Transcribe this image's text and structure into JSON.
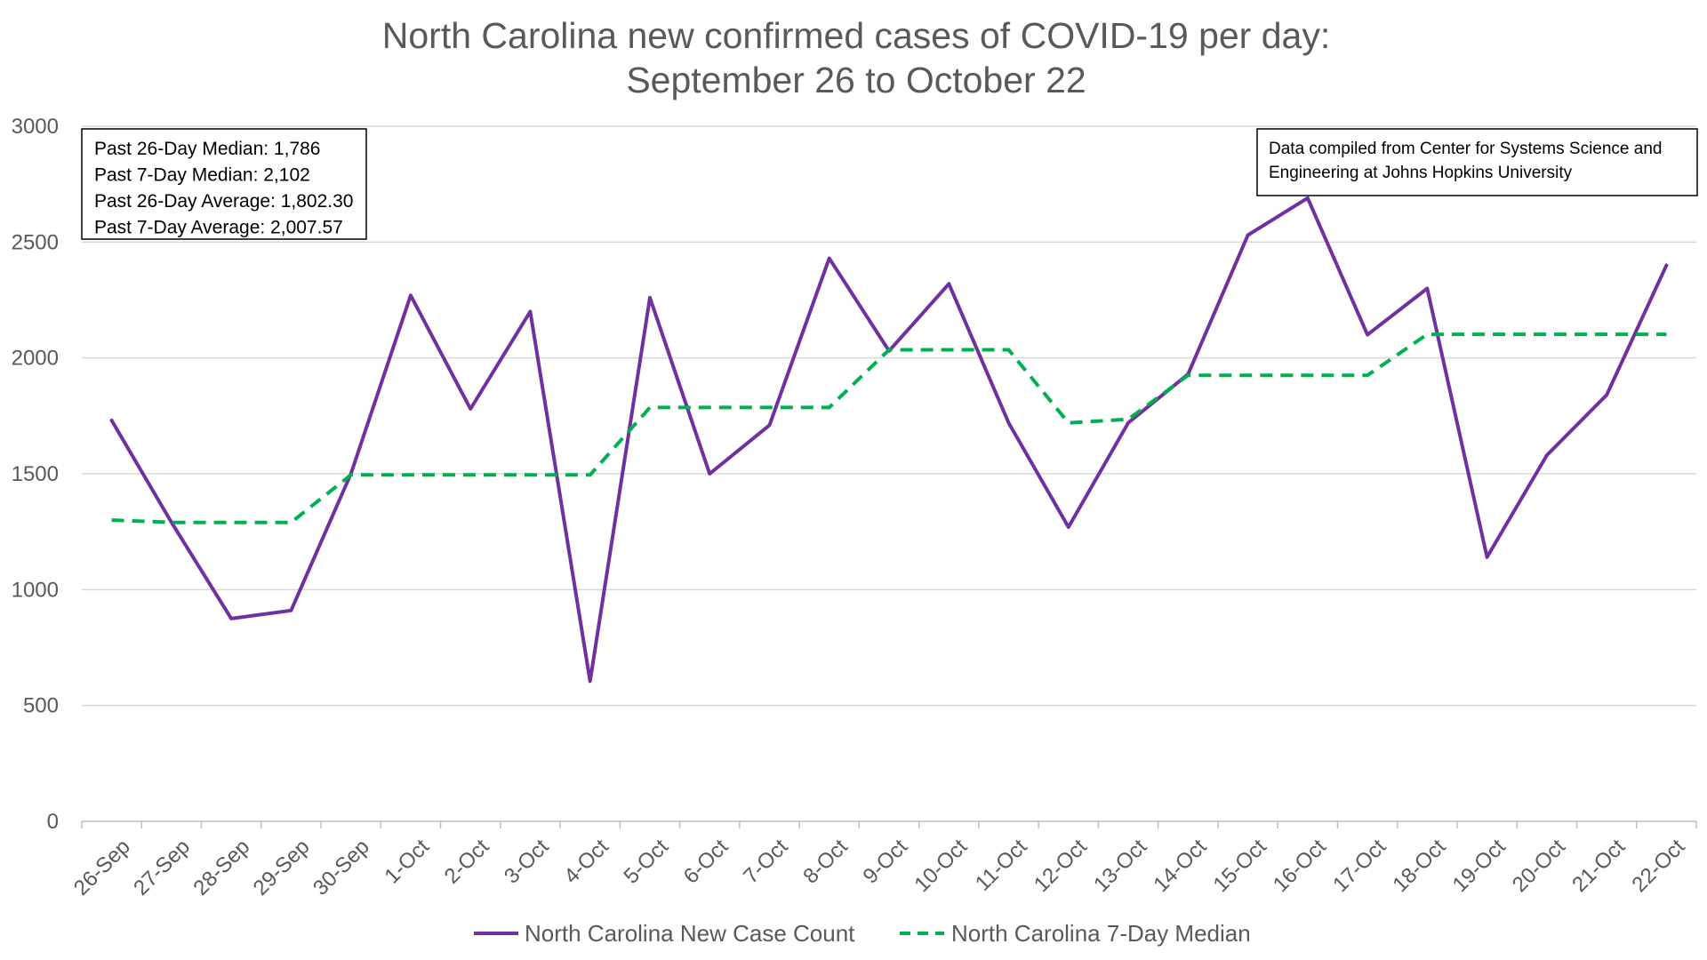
{
  "chart_data": {
    "type": "line",
    "title": [
      "North Carolina new confirmed cases of COVID-19 per day:",
      "September 26 to October 22"
    ],
    "xlabel": "",
    "ylabel": "",
    "ylim": [
      0,
      3000
    ],
    "yticks": [
      0,
      500,
      1000,
      1500,
      2000,
      2500,
      3000
    ],
    "grid": "horizontal",
    "legend_position": "bottom",
    "categories": [
      "26-Sep",
      "27-Sep",
      "28-Sep",
      "29-Sep",
      "30-Sep",
      "1-Oct",
      "2-Oct",
      "3-Oct",
      "4-Oct",
      "5-Oct",
      "6-Oct",
      "7-Oct",
      "8-Oct",
      "9-Oct",
      "10-Oct",
      "11-Oct",
      "12-Oct",
      "13-Oct",
      "14-Oct",
      "15-Oct",
      "16-Oct",
      "17-Oct",
      "18-Oct",
      "19-Oct",
      "20-Oct",
      "21-Oct",
      "22-Oct"
    ],
    "series": [
      {
        "name": "North Carolina New Case Count",
        "color": "#7030a0",
        "style": "solid",
        "values": [
          1730,
          1290,
          875,
          910,
          1500,
          2270,
          1780,
          2200,
          605,
          2260,
          1500,
          1710,
          2430,
          2030,
          2320,
          1720,
          1270,
          1720,
          1930,
          2530,
          2690,
          2100,
          2300,
          1140,
          1580,
          1840,
          2400
        ]
      },
      {
        "name": "North Carolina 7-Day Median",
        "color": "#00b050",
        "style": "dashed",
        "values": [
          1300,
          1290,
          1290,
          1290,
          1495,
          1495,
          1495,
          1495,
          1495,
          1786,
          1786,
          1786,
          1786,
          2035,
          2035,
          2035,
          1720,
          1735,
          1925,
          1925,
          1925,
          1925,
          2102,
          2102,
          2102,
          2102,
          2102
        ]
      }
    ],
    "annotations": {
      "stats_box": [
        "Past 26-Day Median: 1,786",
        "Past 7-Day Median: 2,102",
        "Past 26-Day Average: 1,802.30",
        "Past 7-Day Average: 2,007.57"
      ],
      "source_box": [
        "Data compiled from Center for Systems Science and",
        "Engineering at Johns Hopkins University"
      ]
    }
  }
}
